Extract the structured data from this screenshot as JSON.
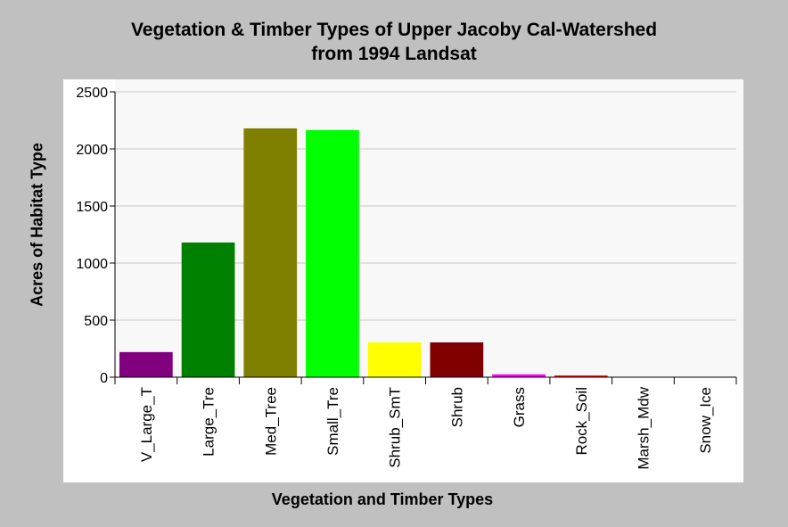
{
  "chart_data": {
    "type": "bar",
    "title": [
      "Vegetation & Timber Types of Upper Jacoby Cal-Watershed",
      "from 1994 Landsat"
    ],
    "xlabel": "Vegetation and Timber Types",
    "ylabel": "Acres of Habitat Type",
    "categories": [
      "V_Large_T",
      "Large_Tre",
      "Med_Tree",
      "Small_Tre",
      "Shrub_SmT",
      "Shrub",
      "Grass",
      "Rock_Soil",
      "Marsh_Mdw",
      "Snow_Ice"
    ],
    "values": [
      220,
      1180,
      2180,
      2165,
      305,
      305,
      25,
      15,
      0,
      0
    ],
    "colors": [
      "#800080",
      "#008000",
      "#808000",
      "#00ff00",
      "#ffff00",
      "#800000",
      "#ff00ff",
      "#ff0000",
      "#808080",
      "#808080"
    ],
    "ylim": [
      0,
      2500
    ],
    "yticks": [
      0,
      500,
      1000,
      1500,
      2000,
      2500
    ],
    "grid": true,
    "legend": "none"
  }
}
